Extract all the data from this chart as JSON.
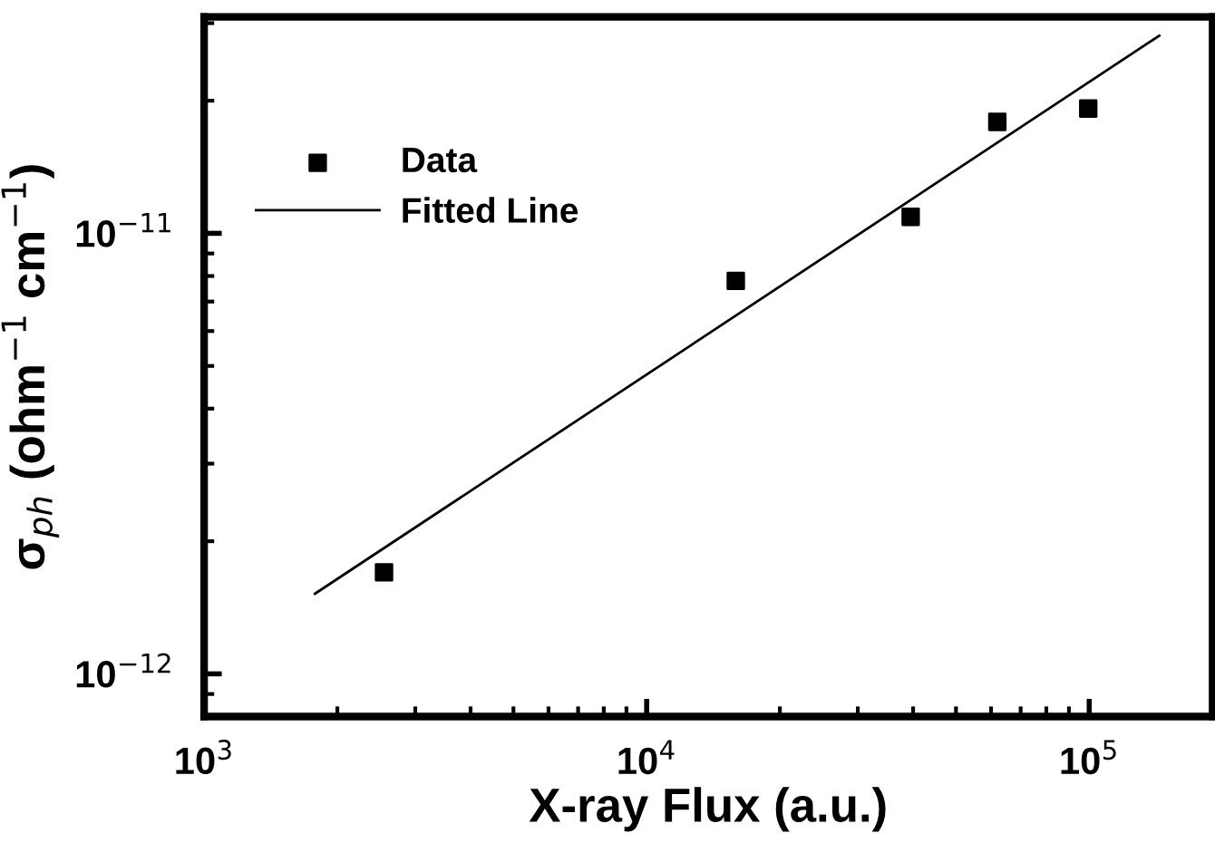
{
  "chart_data": {
    "type": "scatter",
    "xlabel": "X-ray Flux (a.u.)",
    "ylabel": "σ$_{ph}$ (ohm$^{−1}$ cm$^{−1}$)",
    "log": "xy",
    "xlim": [
      1000,
      190000
    ],
    "ylim": [
      8e-13,
      3.1e-11
    ],
    "xticks": [
      {
        "value": 1000,
        "label": "10$^{3}$"
      },
      {
        "value": 10000,
        "label": "10$^{4}$"
      },
      {
        "value": 100000,
        "label": "10$^{5}$"
      }
    ],
    "yticks": [
      {
        "value": 1e-12,
        "label": "10$^{−12}$"
      },
      {
        "value": 1e-11,
        "label": "10$^{−11}$"
      }
    ],
    "grid": false,
    "legend": "top left",
    "series": [
      {
        "name": "Data",
        "color": "#000000",
        "marker": "square",
        "x": [
          2550,
          15900,
          39500,
          62000,
          99500
        ],
        "values": [
          1.7e-12,
          7.8e-12,
          1.09e-11,
          1.79e-11,
          1.92e-11
        ]
      },
      {
        "name": "Fitted Line",
        "type": "line",
        "color": "#000000",
        "marker": "none",
        "line_style": "solid",
        "x": [
          1780,
          144000
        ],
        "values": [
          1.52e-12,
          2.81e-11
        ]
      }
    ]
  }
}
